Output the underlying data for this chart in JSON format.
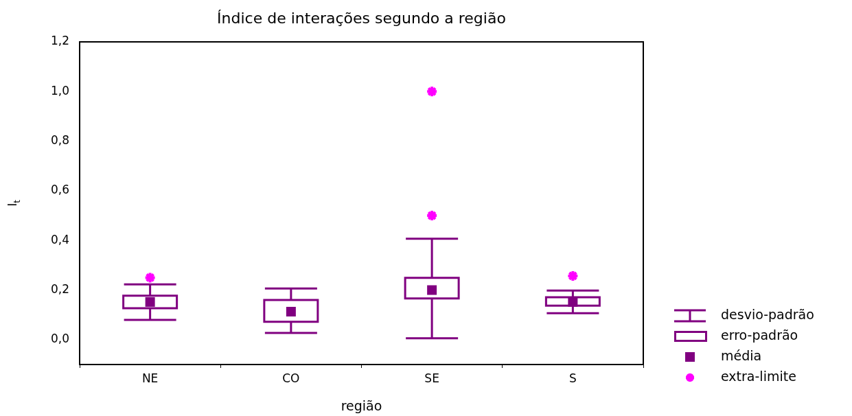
{
  "chart_data": {
    "type": "box",
    "title": "Índice de interações segundo a região",
    "xlabel": "região",
    "ylabel": "I$_{t}$",
    "categories": [
      "NE",
      "CO",
      "SE",
      "S"
    ],
    "ylim": [
      -0.1,
      1.2
    ],
    "yticks": [
      {
        "value": 0,
        "label": "0,0"
      },
      {
        "value": 0.2,
        "label": "0,2"
      },
      {
        "value": 0.4,
        "label": "0,4"
      },
      {
        "value": 0.6,
        "label": "0,6"
      },
      {
        "value": 0.8,
        "label": "0,8"
      },
      {
        "value": 1.0,
        "label": "1,0"
      },
      {
        "value": 1.2,
        "label": "1,2"
      }
    ],
    "grid": false,
    "legend": "right",
    "annotations": [
      "erro-padrão",
      "média"
    ],
    "series": [
      {
        "name": "desvio-padrão",
        "color": "#800080",
        "boxes": [
          {
            "low": 0.08,
            "q1": 0.127,
            "mean": 0.152,
            "q3": 0.177,
            "high": 0.223
          },
          {
            "low": 0.027,
            "q1": 0.072,
            "mean": 0.113,
            "q3": 0.16,
            "high": 0.206
          },
          {
            "low": 0.006,
            "q1": 0.166,
            "mean": 0.2,
            "q3": 0.249,
            "high": 0.407
          },
          {
            "low": 0.107,
            "q1": 0.137,
            "mean": 0.152,
            "q3": 0.171,
            "high": 0.198
          }
        ]
      },
      {
        "name": "extra-limite",
        "type": "scatter",
        "marker": "cross",
        "color": "#ff00ff",
        "x": [
          "NE",
          "SE",
          "SE",
          "S"
        ],
        "values": [
          0.25,
          1.0,
          0.5,
          0.257
        ]
      }
    ]
  }
}
